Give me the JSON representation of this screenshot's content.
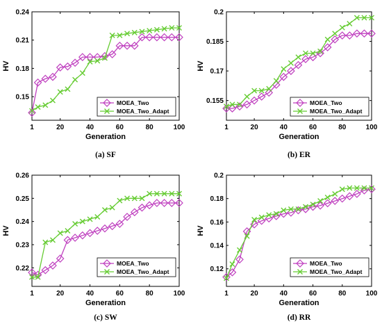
{
  "colors": {
    "series1": "#bf3fbf",
    "series2": "#66cc33",
    "axis": "#000000",
    "background": "#ffffff"
  },
  "chart_data": [
    {
      "type": "line",
      "caption": "(a)  SF",
      "xlabel": "Generation",
      "ylabel": "HV",
      "xlim": [
        1,
        100
      ],
      "ylim": [
        0.125,
        0.24
      ],
      "xticks": [
        1,
        20,
        40,
        60,
        80,
        100
      ],
      "yticks": [
        0.15,
        0.18,
        0.21,
        0.24
      ],
      "legend_position": "bottom-right",
      "series": [
        {
          "name": "MOEA_Two",
          "marker": "diamond",
          "x": [
            1,
            5,
            10,
            15,
            20,
            25,
            30,
            35,
            40,
            45,
            50,
            55,
            60,
            65,
            70,
            75,
            80,
            85,
            90,
            95,
            100
          ],
          "values": [
            0.133,
            0.165,
            0.169,
            0.171,
            0.181,
            0.182,
            0.186,
            0.192,
            0.192,
            0.192,
            0.193,
            0.195,
            0.204,
            0.204,
            0.204,
            0.213,
            0.213,
            0.213,
            0.213,
            0.213,
            0.213
          ]
        },
        {
          "name": "MOEA_Two_Adapt",
          "marker": "x",
          "x": [
            1,
            5,
            10,
            15,
            20,
            25,
            30,
            35,
            40,
            45,
            50,
            55,
            60,
            65,
            70,
            75,
            80,
            85,
            90,
            95,
            100
          ],
          "values": [
            0.135,
            0.139,
            0.141,
            0.146,
            0.155,
            0.158,
            0.168,
            0.175,
            0.187,
            0.188,
            0.191,
            0.215,
            0.215,
            0.217,
            0.218,
            0.219,
            0.22,
            0.221,
            0.222,
            0.223,
            0.223
          ]
        }
      ]
    },
    {
      "type": "line",
      "caption": "(b)  ER",
      "xlabel": "Generation",
      "ylabel": "HV",
      "xlim": [
        1,
        100
      ],
      "ylim": [
        0.145,
        0.2
      ],
      "xticks": [
        1,
        20,
        40,
        60,
        80,
        100
      ],
      "yticks": [
        0.155,
        0.17,
        0.185,
        0.2
      ],
      "yticklabels": [
        "0.155",
        "0.17",
        "0.185",
        "0.2"
      ],
      "legend_position": "bottom-right",
      "series": [
        {
          "name": "MOEA_Two",
          "marker": "diamond",
          "x": [
            1,
            5,
            10,
            15,
            20,
            25,
            30,
            35,
            40,
            45,
            50,
            55,
            60,
            65,
            70,
            75,
            80,
            85,
            90,
            95,
            100
          ],
          "values": [
            0.151,
            0.151,
            0.152,
            0.153,
            0.155,
            0.157,
            0.159,
            0.163,
            0.167,
            0.17,
            0.173,
            0.176,
            0.177,
            0.179,
            0.182,
            0.186,
            0.188,
            0.188,
            0.189,
            0.189,
            0.189
          ]
        },
        {
          "name": "MOEA_Two_Adapt",
          "marker": "x",
          "x": [
            1,
            5,
            10,
            15,
            20,
            25,
            30,
            35,
            40,
            45,
            50,
            55,
            60,
            65,
            70,
            75,
            80,
            85,
            90,
            95,
            100
          ],
          "values": [
            0.152,
            0.153,
            0.153,
            0.157,
            0.16,
            0.16,
            0.161,
            0.165,
            0.171,
            0.174,
            0.177,
            0.179,
            0.179,
            0.18,
            0.186,
            0.189,
            0.192,
            0.194,
            0.197,
            0.197,
            0.197
          ]
        }
      ]
    },
    {
      "type": "line",
      "caption": "(c)  SW",
      "xlabel": "Generation",
      "ylabel": "HV",
      "xlim": [
        1,
        100
      ],
      "ylim": [
        0.212,
        0.26
      ],
      "xticks": [
        1,
        20,
        40,
        60,
        80,
        100
      ],
      "yticks": [
        0.22,
        0.23,
        0.24,
        0.25,
        0.26
      ],
      "legend_position": "bottom-right",
      "series": [
        {
          "name": "MOEA_Two",
          "marker": "diamond",
          "x": [
            1,
            5,
            10,
            15,
            20,
            25,
            30,
            35,
            40,
            45,
            50,
            55,
            60,
            65,
            70,
            75,
            80,
            85,
            90,
            95,
            100
          ],
          "values": [
            0.218,
            0.217,
            0.219,
            0.221,
            0.224,
            0.232,
            0.233,
            0.234,
            0.235,
            0.236,
            0.237,
            0.238,
            0.239,
            0.242,
            0.244,
            0.246,
            0.247,
            0.248,
            0.248,
            0.248,
            0.248
          ]
        },
        {
          "name": "MOEA_Two_Adapt",
          "marker": "x",
          "x": [
            1,
            5,
            10,
            15,
            20,
            25,
            30,
            35,
            40,
            45,
            50,
            55,
            60,
            65,
            70,
            75,
            80,
            85,
            90,
            95,
            100
          ],
          "values": [
            0.216,
            0.216,
            0.231,
            0.232,
            0.235,
            0.236,
            0.239,
            0.24,
            0.241,
            0.242,
            0.245,
            0.246,
            0.249,
            0.25,
            0.25,
            0.25,
            0.252,
            0.252,
            0.252,
            0.252,
            0.252
          ]
        }
      ]
    },
    {
      "type": "line",
      "caption": "(d)  RR",
      "xlabel": "Generation",
      "ylabel": "HV",
      "xlim": [
        1,
        100
      ],
      "ylim": [
        0.105,
        0.2
      ],
      "xticks": [
        1,
        20,
        40,
        60,
        80,
        100
      ],
      "yticks": [
        0.12,
        0.14,
        0.16,
        0.18,
        0.2
      ],
      "yticklabels": [
        "0.12",
        "0.14",
        "0.16",
        "0.18",
        "0.2"
      ],
      "legend_position": "bottom-right",
      "series": [
        {
          "name": "MOEA_Two",
          "marker": "diamond",
          "x": [
            1,
            5,
            10,
            15,
            20,
            25,
            30,
            35,
            40,
            45,
            50,
            55,
            60,
            65,
            70,
            75,
            80,
            85,
            90,
            95,
            100
          ],
          "values": [
            0.113,
            0.117,
            0.128,
            0.152,
            0.158,
            0.161,
            0.163,
            0.165,
            0.167,
            0.168,
            0.17,
            0.171,
            0.173,
            0.174,
            0.176,
            0.178,
            0.18,
            0.182,
            0.184,
            0.187,
            0.188
          ]
        },
        {
          "name": "MOEA_Two_Adapt",
          "marker": "x",
          "x": [
            1,
            5,
            10,
            15,
            20,
            25,
            30,
            35,
            40,
            45,
            50,
            55,
            60,
            65,
            70,
            75,
            80,
            85,
            90,
            95,
            100
          ],
          "values": [
            0.112,
            0.124,
            0.136,
            0.148,
            0.162,
            0.164,
            0.166,
            0.167,
            0.17,
            0.171,
            0.171,
            0.173,
            0.175,
            0.178,
            0.181,
            0.184,
            0.188,
            0.189,
            0.189,
            0.189,
            0.189
          ]
        }
      ]
    }
  ]
}
